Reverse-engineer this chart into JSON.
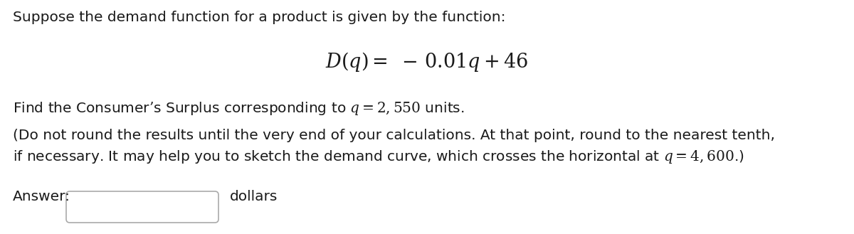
{
  "bg_color": "#ffffff",
  "line1": "Suppose the demand function for a product is given by the function:",
  "line2_math": "$D(q) =\\ -\\,0.01q + 46$",
  "line3": "Find the Consumer’s Surplus corresponding to $q = 2, 550$ units.",
  "line4": "(Do not round the results until the very end of your calculations. At that point, round to the nearest tenth,",
  "line5": "if necessary. It may help you to sketch the demand curve, which crosses the horizontal at $q = 4, 600$.)",
  "line6_label": "Answer:",
  "line6_suffix": "dollars",
  "font_size_main": 14.5,
  "font_size_math_center": 19.5,
  "text_color": "#1a1a1a"
}
